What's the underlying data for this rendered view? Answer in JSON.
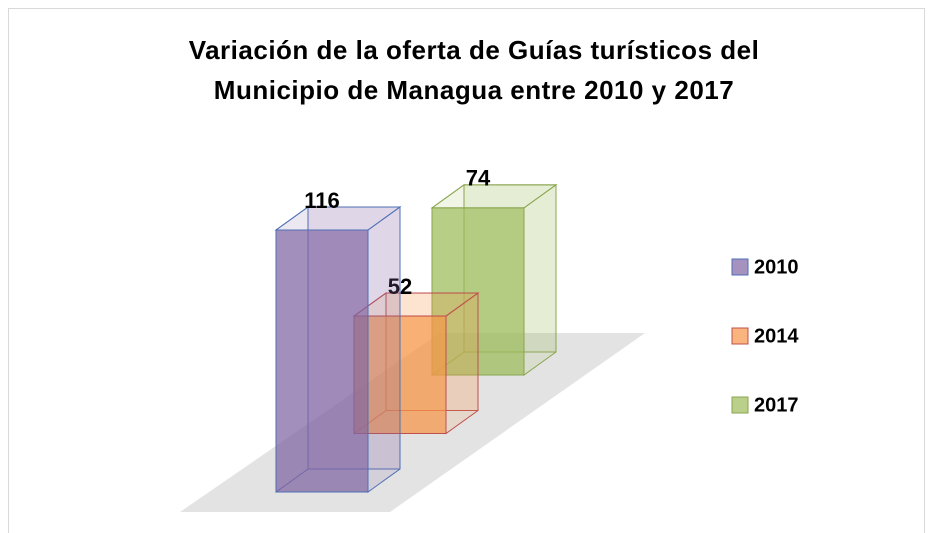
{
  "chart_data": {
    "type": "bar3d",
    "title": "Variación de la oferta de Guías turísticos del Municipio de Managua entre 2010 y 2017",
    "legend": "right",
    "series": [
      {
        "name": "2010",
        "color": "#8064a2",
        "edge": "#4f6fb5",
        "values": [
          116
        ]
      },
      {
        "name": "2014",
        "color": "#f79646",
        "edge": "#c0504d",
        "values": [
          52
        ]
      },
      {
        "name": "2017",
        "color": "#9bbb59",
        "edge": "#8aa54f",
        "values": [
          74
        ]
      }
    ]
  }
}
